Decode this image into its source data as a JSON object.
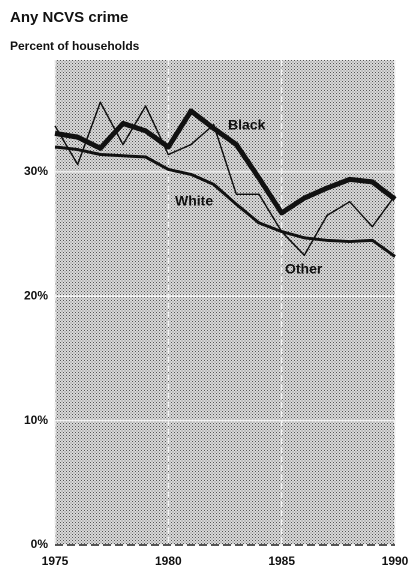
{
  "chart_data": {
    "type": "line",
    "title": "Any NCVS crime",
    "subtitle": "Percent of households",
    "x": [
      1975,
      1976,
      1977,
      1978,
      1979,
      1980,
      1981,
      1982,
      1983,
      1984,
      1985,
      1986,
      1987,
      1988,
      1989,
      1990
    ],
    "series": [
      {
        "name": "Black",
        "color": "#111111",
        "line_width": 5,
        "values": [
          33.1,
          32.8,
          31.9,
          33.9,
          33.3,
          32.0,
          34.9,
          33.5,
          32.2,
          29.5,
          26.7,
          27.9,
          28.7,
          29.4,
          29.2,
          27.8
        ]
      },
      {
        "name": "White",
        "color": "#111111",
        "line_width": 3,
        "values": [
          32.0,
          31.8,
          31.4,
          31.3,
          31.2,
          30.2,
          29.8,
          29.0,
          27.4,
          25.9,
          25.2,
          24.7,
          24.5,
          24.4,
          24.5,
          23.2
        ]
      },
      {
        "name": "Other",
        "color": "#111111",
        "line_width": 1.5,
        "values": [
          33.7,
          30.6,
          35.6,
          32.2,
          35.3,
          31.4,
          32.2,
          33.8,
          28.2,
          28.2,
          25.2,
          23.3,
          26.5,
          27.6,
          25.6,
          28.1
        ]
      }
    ],
    "xlim": [
      1975,
      1990
    ],
    "xticks": [
      1975,
      1980,
      1985,
      1990
    ],
    "ylim": [
      0,
      39
    ],
    "yticks": [
      {
        "value": 0,
        "label": "0%"
      },
      {
        "value": 10,
        "label": "10%"
      },
      {
        "value": 20,
        "label": "20%"
      },
      {
        "value": 30,
        "label": "30%"
      }
    ],
    "grid": true
  }
}
